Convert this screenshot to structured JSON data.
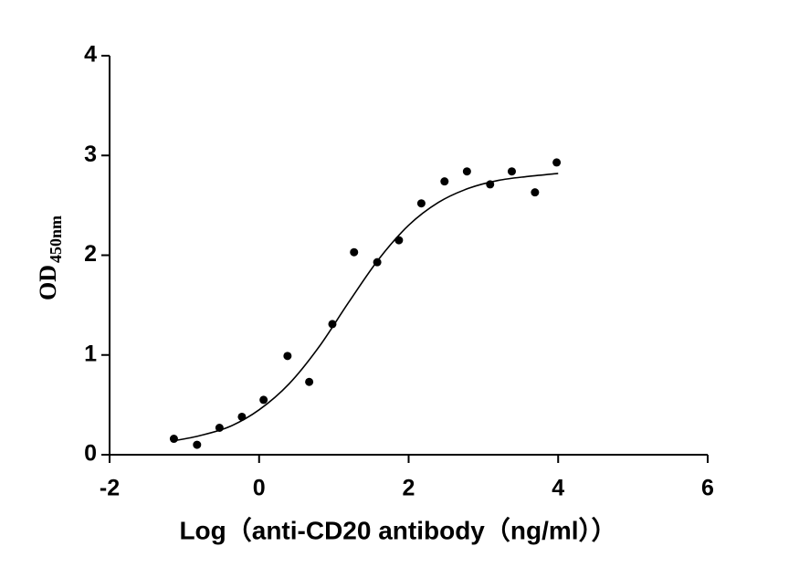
{
  "chart_data": {
    "type": "scatter",
    "x_label": "Log（anti-CD20 antibody（ng/ml））",
    "y_label": "OD",
    "y_label_subscript": "450nm",
    "xlim": [
      -2,
      6
    ],
    "xticks": [
      -2,
      0,
      2,
      4,
      6
    ],
    "ylim": [
      0,
      4
    ],
    "yticks": [
      0,
      1,
      2,
      3,
      4
    ],
    "grid": false,
    "series": [
      {
        "mode": "markers",
        "color": "#000000",
        "x": [
          -1.14,
          -0.83,
          -0.53,
          -0.23,
          0.06,
          0.38,
          0.67,
          0.98,
          1.27,
          1.58,
          1.87,
          2.17,
          2.48,
          2.78,
          3.09,
          3.38,
          3.69,
          3.98
        ],
        "values": [
          0.16,
          0.1,
          0.27,
          0.38,
          0.55,
          0.99,
          0.73,
          1.31,
          2.03,
          1.93,
          2.15,
          2.52,
          2.74,
          2.84,
          2.71,
          2.84,
          2.63,
          2.93
        ]
      },
      {
        "mode": "line",
        "color": "#000000",
        "x": [
          -1.14,
          -0.8,
          -0.4,
          0,
          0.4,
          0.8,
          1.2,
          1.6,
          2.0,
          2.4,
          2.8,
          3.2,
          3.6,
          4.0
        ],
        "values": [
          0.14,
          0.19,
          0.28,
          0.45,
          0.71,
          1.08,
          1.53,
          1.96,
          2.3,
          2.53,
          2.67,
          2.75,
          2.79,
          2.82
        ]
      }
    ]
  }
}
